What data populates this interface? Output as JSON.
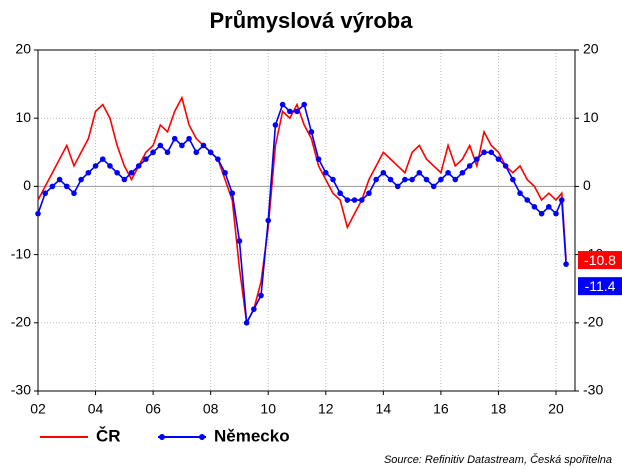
{
  "chart_data": {
    "type": "line",
    "title": "Průmyslová výroba",
    "source": "Source: Refinitiv Datastream, Česká spořitelna",
    "x": [
      2002,
      2002.25,
      2002.5,
      2002.75,
      2003,
      2003.25,
      2003.5,
      2003.75,
      2004,
      2004.25,
      2004.5,
      2004.75,
      2005,
      2005.25,
      2005.5,
      2005.75,
      2006,
      2006.25,
      2006.5,
      2006.75,
      2007,
      2007.25,
      2007.5,
      2007.75,
      2008,
      2008.25,
      2008.5,
      2008.75,
      2009,
      2009.25,
      2009.5,
      2009.75,
      2010,
      2010.25,
      2010.5,
      2010.75,
      2011,
      2011.25,
      2011.5,
      2011.75,
      2012,
      2012.25,
      2012.5,
      2012.75,
      2013,
      2013.25,
      2013.5,
      2013.75,
      2014,
      2014.25,
      2014.5,
      2014.75,
      2015,
      2015.25,
      2015.5,
      2015.75,
      2016,
      2016.25,
      2016.5,
      2016.75,
      2017,
      2017.25,
      2017.5,
      2017.75,
      2018,
      2018.25,
      2018.5,
      2018.75,
      2019,
      2019.25,
      2019.5,
      2019.75,
      2020,
      2020.2,
      2020.35
    ],
    "series": [
      {
        "name": "ČR",
        "color": "#ff0000",
        "markers": false,
        "values": [
          -2,
          0,
          2,
          4,
          6,
          3,
          5,
          7,
          11,
          12,
          10,
          6,
          3,
          1,
          3,
          5,
          6,
          9,
          8,
          11,
          13,
          9,
          7,
          6,
          5,
          4,
          1,
          -2,
          -12,
          -20,
          -18,
          -14,
          -6,
          6,
          11,
          10,
          12,
          9,
          7,
          3,
          1,
          -1,
          -2,
          -6,
          -4,
          -2,
          1,
          3,
          5,
          4,
          3,
          2,
          5,
          6,
          4,
          3,
          2,
          6,
          3,
          4,
          6,
          3,
          8,
          6,
          5,
          3,
          2,
          3,
          1,
          0,
          -2,
          -1,
          -2,
          -1,
          -10.8
        ]
      },
      {
        "name": "Německo",
        "color": "#0000ff",
        "markers": true,
        "values": [
          -4,
          -1,
          0,
          1,
          0,
          -1,
          1,
          2,
          3,
          4,
          3,
          2,
          1,
          2,
          3,
          4,
          5,
          6,
          5,
          7,
          6,
          7,
          5,
          6,
          5,
          4,
          2,
          -1,
          -8,
          -20,
          -18,
          -16,
          -5,
          9,
          12,
          11,
          11,
          12,
          8,
          4,
          2,
          1,
          -1,
          -2,
          -2,
          -2,
          -1,
          1,
          2,
          1,
          0,
          1,
          1,
          2,
          1,
          0,
          1,
          2,
          1,
          2,
          3,
          4,
          5,
          5,
          4,
          3,
          1,
          -1,
          -2,
          -3,
          -4,
          -3,
          -4,
          -2,
          -11.4
        ]
      }
    ],
    "xlim": [
      2002,
      2020.66
    ],
    "xticks": [
      {
        "value": 2002,
        "label": "02"
      },
      {
        "value": 2004,
        "label": "04"
      },
      {
        "value": 2006,
        "label": "06"
      },
      {
        "value": 2008,
        "label": "08"
      },
      {
        "value": 2010,
        "label": "10"
      },
      {
        "value": 2012,
        "label": "12"
      },
      {
        "value": 2014,
        "label": "14"
      },
      {
        "value": 2016,
        "label": "16"
      },
      {
        "value": 2018,
        "label": "18"
      },
      {
        "value": 2020,
        "label": "20"
      }
    ],
    "ylim": [
      -30,
      20
    ],
    "yticks": [
      20,
      10,
      0,
      -10,
      -20,
      -30
    ],
    "y2lim": [
      -30,
      20
    ],
    "y2ticks": [
      20,
      10,
      0,
      -10,
      -20,
      -30
    ],
    "grid": true
  }
}
